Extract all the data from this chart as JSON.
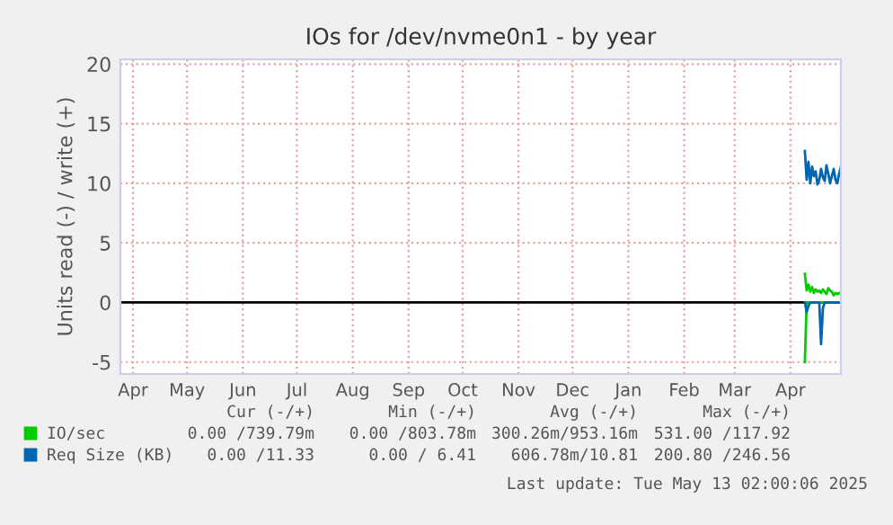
{
  "chart_data": {
    "type": "line",
    "title": "IOs for /dev/nvme0n1 - by year",
    "ylabel": "Units read (-) / write (+)",
    "x": [
      "2025-04-23",
      "2025-04-24",
      "2025-04-25",
      "2025-04-26",
      "2025-04-27",
      "2025-04-28",
      "2025-04-29",
      "2025-04-30",
      "2025-05-01",
      "2025-05-02",
      "2025-05-03",
      "2025-05-04",
      "2025-05-05",
      "2025-05-06",
      "2025-05-07",
      "2025-05-08",
      "2025-05-09",
      "2025-05-10",
      "2025-05-11",
      "2025-05-12",
      "2025-05-13"
    ],
    "series": [
      {
        "name": "IO/sec",
        "color": "#00cc00",
        "values": [
          2.4,
          1.0,
          1.5,
          0.9,
          1.3,
          0.8,
          1.1,
          0.9,
          1.0,
          0.8,
          1.1,
          0.9,
          0.7,
          1.2,
          1.0,
          0.9,
          0.6,
          0.8,
          0.7,
          0.8,
          0.7
        ]
      },
      {
        "color": "#00cc00",
        "values": [
          -5.0,
          0,
          0,
          0,
          0,
          0,
          0,
          0,
          0,
          0,
          0,
          0,
          0,
          0,
          0,
          null,
          null,
          null,
          null,
          null,
          null
        ]
      },
      {
        "name": "Req Size (KB)",
        "color": "#0066b3",
        "values": [
          12.7,
          10.3,
          11.8,
          10.0,
          11.4,
          10.6,
          11.0,
          9.9,
          10.3,
          11.2,
          10.5,
          10.2,
          11.5,
          10.8,
          10.0,
          10.6,
          11.2,
          10.3,
          10.0,
          10.8,
          11.4
        ]
      },
      {
        "color": "#0066b3",
        "values": [
          0,
          -0.8,
          -0.3,
          0,
          0,
          0,
          0,
          0,
          0,
          -3.5,
          -0.5,
          0,
          0,
          0,
          0,
          0,
          0,
          0,
          0,
          0,
          0
        ]
      }
    ],
    "xlim": [
      "2024-04-08",
      "2025-05-13"
    ],
    "xticks": [
      {
        "value": "2024-04-15",
        "label": "Apr"
      },
      {
        "value": "2024-05-15",
        "label": "May"
      },
      {
        "value": "2024-06-15",
        "label": "Jun"
      },
      {
        "value": "2024-07-15",
        "label": "Jul"
      },
      {
        "value": "2024-08-15",
        "label": "Aug"
      },
      {
        "value": "2024-09-15",
        "label": "Sep"
      },
      {
        "value": "2024-10-15",
        "label": "Oct"
      },
      {
        "value": "2024-11-15",
        "label": "Nov"
      },
      {
        "value": "2024-12-15",
        "label": "Dec"
      },
      {
        "value": "2025-01-15",
        "label": "Jan"
      },
      {
        "value": "2025-02-15",
        "label": "Feb"
      },
      {
        "value": "2025-03-15",
        "label": "Mar"
      },
      {
        "value": "2025-04-15",
        "label": "Apr"
      }
    ],
    "ylim": [
      -6,
      20.4
    ],
    "yticks": [
      -5,
      0,
      5,
      10,
      15,
      20
    ],
    "ref_lines": [
      {
        "axis": "y",
        "value": 0,
        "color": "#000000"
      }
    ],
    "grid": true,
    "legend": "bottom",
    "annotations": [
      "Cur (-/+)",
      "Min (-/+)",
      "Avg (-/+)",
      "Max (-/+)",
      "0.00 /739.79m",
      "0.00 /803.78m",
      "300.26m/953.16m",
      "531.00 /117.92",
      "0.00 /11.33",
      "0.00 / 6.41",
      "606.78m/10.81",
      "200.80 /246.56",
      "Last update: Tue May 13 02:00:06 2025"
    ]
  }
}
